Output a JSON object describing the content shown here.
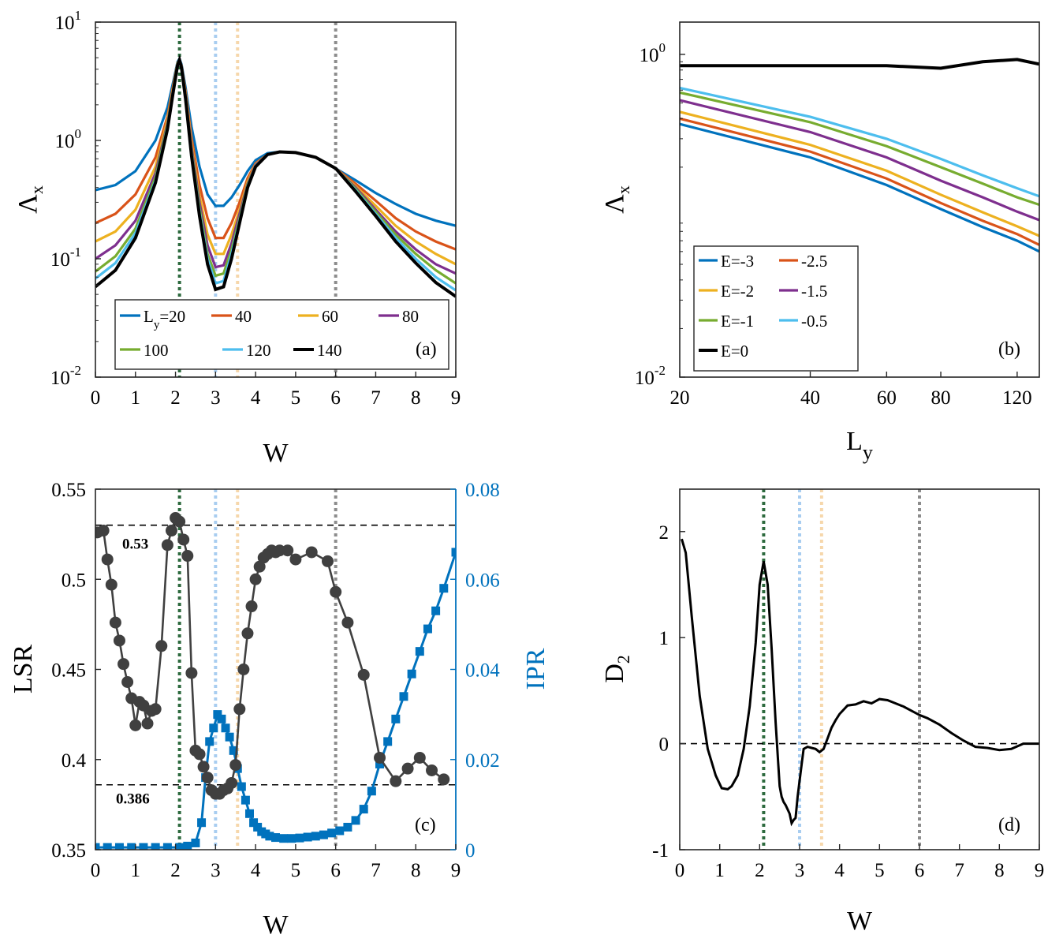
{
  "chart_data": [
    {
      "panel": "a",
      "type": "line",
      "xlabel": "W",
      "ylabel": "Λ",
      "ylabel_sub": "x",
      "yscale": "log",
      "xlim": [
        0,
        9
      ],
      "ylim_exp": [
        -2,
        1
      ],
      "xticks": [
        "0",
        "1",
        "2",
        "3",
        "4",
        "5",
        "6",
        "7",
        "8",
        "9"
      ],
      "yticks": [
        {
          "base": "10",
          "exp": "-2"
        },
        {
          "base": "10",
          "exp": "-1"
        },
        {
          "base": "10",
          "exp": "0"
        },
        {
          "base": "10",
          "exp": "1"
        }
      ],
      "panel_label": "(a)",
      "vlines": [
        {
          "x": 2.1,
          "color": "#2d6a3e"
        },
        {
          "x": 3.0,
          "color": "#a8cdf0"
        },
        {
          "x": 3.55,
          "color": "#f6d7ab"
        },
        {
          "x": 6.0,
          "color": "#8c8c8c"
        }
      ],
      "x": [
        0,
        0.5,
        1.0,
        1.5,
        1.8,
        1.95,
        2.05,
        2.1,
        2.15,
        2.25,
        2.4,
        2.6,
        2.8,
        3.0,
        3.2,
        3.4,
        3.6,
        3.8,
        4.0,
        4.3,
        4.6,
        5.0,
        5.5,
        6.0,
        6.5,
        7.0,
        7.5,
        8.0,
        8.5,
        9.0
      ],
      "series": [
        {
          "name": "L_y=20",
          "legend_label": "L",
          "legend_sub": "y",
          "legend_tail": "=20",
          "color": "#0072bd",
          "values": [
            0.38,
            0.42,
            0.55,
            1.0,
            1.9,
            3.2,
            4.6,
            4.9,
            4.4,
            2.8,
            1.3,
            0.6,
            0.35,
            0.28,
            0.28,
            0.33,
            0.42,
            0.55,
            0.68,
            0.78,
            0.8,
            0.79,
            0.72,
            0.58,
            0.46,
            0.36,
            0.29,
            0.24,
            0.21,
            0.19
          ]
        },
        {
          "name": "40",
          "legend_label": "40",
          "color": "#d95319",
          "values": [
            0.2,
            0.24,
            0.35,
            0.72,
            1.6,
            3.0,
            4.5,
            4.8,
            4.3,
            2.6,
            1.05,
            0.42,
            0.22,
            0.15,
            0.15,
            0.2,
            0.3,
            0.48,
            0.64,
            0.76,
            0.8,
            0.79,
            0.72,
            0.58,
            0.43,
            0.31,
            0.22,
            0.17,
            0.14,
            0.12
          ]
        },
        {
          "name": "60",
          "legend_label": "60",
          "color": "#edb120",
          "values": [
            0.14,
            0.17,
            0.26,
            0.6,
            1.5,
            2.9,
            4.5,
            4.8,
            4.2,
            2.5,
            0.95,
            0.34,
            0.16,
            0.11,
            0.11,
            0.16,
            0.26,
            0.45,
            0.63,
            0.76,
            0.8,
            0.79,
            0.72,
            0.58,
            0.41,
            0.28,
            0.19,
            0.14,
            0.11,
            0.09
          ]
        },
        {
          "name": "80",
          "legend_label": "80",
          "color": "#7e2f8e",
          "values": [
            0.1,
            0.13,
            0.21,
            0.53,
            1.4,
            2.8,
            4.4,
            4.8,
            4.2,
            2.4,
            0.88,
            0.3,
            0.13,
            0.085,
            0.088,
            0.135,
            0.24,
            0.43,
            0.62,
            0.76,
            0.8,
            0.79,
            0.72,
            0.58,
            0.4,
            0.26,
            0.17,
            0.12,
            0.09,
            0.075
          ]
        },
        {
          "name": "100",
          "legend_label": "100",
          "color": "#77ac30",
          "values": [
            0.078,
            0.105,
            0.18,
            0.49,
            1.35,
            2.75,
            4.4,
            4.8,
            4.2,
            2.35,
            0.82,
            0.27,
            0.11,
            0.072,
            0.075,
            0.12,
            0.22,
            0.42,
            0.61,
            0.76,
            0.8,
            0.79,
            0.72,
            0.58,
            0.39,
            0.25,
            0.16,
            0.11,
            0.08,
            0.062
          ]
        },
        {
          "name": "120",
          "legend_label": "120",
          "color": "#4dbeee",
          "values": [
            0.068,
            0.092,
            0.165,
            0.46,
            1.3,
            2.7,
            4.4,
            4.8,
            4.1,
            2.3,
            0.78,
            0.25,
            0.1,
            0.062,
            0.065,
            0.11,
            0.21,
            0.41,
            0.61,
            0.76,
            0.8,
            0.79,
            0.72,
            0.58,
            0.38,
            0.24,
            0.15,
            0.1,
            0.07,
            0.054
          ]
        },
        {
          "name": "140",
          "legend_label": "140",
          "color": "#000000",
          "values": [
            0.058,
            0.08,
            0.15,
            0.44,
            1.25,
            2.65,
            4.3,
            4.8,
            4.1,
            2.25,
            0.74,
            0.23,
            0.09,
            0.055,
            0.058,
            0.1,
            0.2,
            0.4,
            0.6,
            0.76,
            0.8,
            0.79,
            0.72,
            0.58,
            0.37,
            0.23,
            0.14,
            0.092,
            0.063,
            0.048
          ]
        }
      ]
    },
    {
      "panel": "b",
      "type": "line",
      "xlabel": "L",
      "xlabel_sub": "y",
      "ylabel": "Λ",
      "ylabel_sub": "x",
      "xscale": "log",
      "yscale": "log",
      "xlim": [
        20,
        135
      ],
      "ylim_exp": [
        -2,
        0.2
      ],
      "xticks": [
        "20",
        "40",
        "60",
        "80",
        "120"
      ],
      "xtick_values": [
        20,
        40,
        60,
        80,
        120
      ],
      "yticks": [
        {
          "base": "10",
          "exp": "-2"
        },
        {
          "base": "10",
          "exp": "0"
        }
      ],
      "panel_label": "(b)",
      "x": [
        20,
        40,
        60,
        80,
        100,
        120,
        135
      ],
      "series": [
        {
          "name": "E=-3",
          "legend_label": "E=-3",
          "color": "#0072bd",
          "values": [
            0.37,
            0.23,
            0.155,
            0.11,
            0.085,
            0.07,
            0.06
          ]
        },
        {
          "name": "-2.5",
          "legend_label": "-2.5",
          "color": "#d95319",
          "values": [
            0.4,
            0.25,
            0.17,
            0.12,
            0.093,
            0.077,
            0.066
          ]
        },
        {
          "name": "E=-2",
          "legend_label": "E=-2",
          "color": "#edb120",
          "values": [
            0.44,
            0.275,
            0.19,
            0.135,
            0.105,
            0.086,
            0.075
          ]
        },
        {
          "name": "-1.5",
          "legend_label": "-1.5",
          "color": "#7e2f8e",
          "values": [
            0.52,
            0.33,
            0.23,
            0.165,
            0.13,
            0.106,
            0.094
          ]
        },
        {
          "name": "E=-1",
          "legend_label": "E=-1",
          "color": "#77ac30",
          "values": [
            0.58,
            0.38,
            0.27,
            0.2,
            0.158,
            0.13,
            0.117
          ]
        },
        {
          "name": "-0.5",
          "legend_label": "-0.5",
          "color": "#4dbeee",
          "values": [
            0.62,
            0.41,
            0.3,
            0.225,
            0.178,
            0.148,
            0.132
          ]
        },
        {
          "name": "E=0",
          "legend_label": "E=0",
          "color": "#000000",
          "values": [
            0.85,
            0.85,
            0.85,
            0.82,
            0.9,
            0.93,
            0.87
          ]
        }
      ]
    },
    {
      "panel": "c",
      "type": "scatter",
      "xlabel": "W",
      "ylabel": "LSR",
      "ylabel_right": "IPR",
      "xlim": [
        0,
        9
      ],
      "ylim": [
        0.35,
        0.55
      ],
      "ylim_right": [
        0,
        0.08
      ],
      "xticks": [
        "0",
        "1",
        "2",
        "3",
        "4",
        "5",
        "6",
        "7",
        "8",
        "9"
      ],
      "yticks": [
        "0.35",
        "0.4",
        "0.45",
        "0.5",
        "0.55"
      ],
      "yticks_right": [
        "0",
        "0.02",
        "0.04",
        "0.06",
        "0.08"
      ],
      "panel_label": "(c)",
      "hlines": [
        {
          "y": 0.53,
          "label": "0.53"
        },
        {
          "y": 0.386,
          "label": "0.386"
        }
      ],
      "vlines": [
        {
          "x": 2.1,
          "color": "#2d6a3e"
        },
        {
          "x": 3.0,
          "color": "#a8cdf0"
        },
        {
          "x": 3.55,
          "color": "#f6d7ab"
        },
        {
          "x": 6.0,
          "color": "#8c8c8c"
        }
      ],
      "series": [
        {
          "name": "LSR",
          "color": "#404040",
          "marker": "circle",
          "axis": "left",
          "x": [
            0.05,
            0.2,
            0.3,
            0.4,
            0.5,
            0.6,
            0.7,
            0.8,
            0.9,
            1.0,
            1.1,
            1.2,
            1.3,
            1.4,
            1.5,
            1.65,
            1.8,
            1.9,
            2.0,
            2.1,
            2.2,
            2.3,
            2.4,
            2.5,
            2.6,
            2.7,
            2.8,
            2.9,
            3.0,
            3.1,
            3.2,
            3.3,
            3.4,
            3.5,
            3.6,
            3.7,
            3.8,
            3.9,
            4.0,
            4.1,
            4.2,
            4.3,
            4.4,
            4.5,
            4.6,
            4.8,
            5.0,
            5.4,
            5.8,
            6.0,
            6.3,
            6.7,
            7.1,
            7.5,
            7.8,
            8.1,
            8.4,
            8.7
          ],
          "values": [
            0.526,
            0.527,
            0.511,
            0.497,
            0.476,
            0.466,
            0.453,
            0.443,
            0.434,
            0.419,
            0.432,
            0.43,
            0.42,
            0.427,
            0.428,
            0.463,
            0.519,
            0.527,
            0.534,
            0.532,
            0.522,
            0.513,
            0.448,
            0.405,
            0.403,
            0.396,
            0.39,
            0.383,
            0.381,
            0.381,
            0.383,
            0.384,
            0.387,
            0.397,
            0.428,
            0.45,
            0.47,
            0.485,
            0.5,
            0.507,
            0.512,
            0.514,
            0.516,
            0.515,
            0.516,
            0.516,
            0.511,
            0.515,
            0.51,
            0.493,
            0.476,
            0.447,
            0.401,
            0.388,
            0.395,
            0.401,
            0.394,
            0.389
          ]
        },
        {
          "name": "IPR",
          "color": "#0072bd",
          "marker": "square",
          "axis": "right",
          "x": [
            0,
            0.3,
            0.6,
            0.9,
            1.2,
            1.5,
            1.8,
            2.1,
            2.3,
            2.5,
            2.65,
            2.75,
            2.85,
            2.95,
            3.05,
            3.15,
            3.25,
            3.35,
            3.45,
            3.55,
            3.65,
            3.75,
            3.85,
            3.95,
            4.05,
            4.15,
            4.25,
            4.35,
            4.5,
            4.7,
            4.9,
            5.1,
            5.3,
            5.5,
            5.7,
            5.9,
            6.1,
            6.3,
            6.5,
            6.7,
            6.9,
            7.1,
            7.3,
            7.5,
            7.7,
            7.9,
            8.1,
            8.3,
            8.5,
            8.7,
            9.0
          ],
          "values": [
            0.0005,
            0.0005,
            0.0005,
            0.0005,
            0.0005,
            0.0005,
            0.0005,
            0.0005,
            0.0008,
            0.0015,
            0.006,
            0.016,
            0.024,
            0.027,
            0.03,
            0.029,
            0.027,
            0.025,
            0.022,
            0.018,
            0.014,
            0.011,
            0.008,
            0.006,
            0.005,
            0.004,
            0.0035,
            0.003,
            0.0027,
            0.0025,
            0.0025,
            0.0026,
            0.0028,
            0.003,
            0.0033,
            0.0037,
            0.0042,
            0.005,
            0.0065,
            0.009,
            0.013,
            0.019,
            0.024,
            0.029,
            0.034,
            0.039,
            0.044,
            0.049,
            0.053,
            0.058,
            0.066
          ]
        }
      ]
    },
    {
      "panel": "d",
      "type": "line",
      "xlabel": "W",
      "ylabel": "D",
      "ylabel_sub": "2",
      "xlim": [
        0,
        9
      ],
      "ylim": [
        -1,
        2.4
      ],
      "xticks": [
        "0",
        "1",
        "2",
        "3",
        "4",
        "5",
        "6",
        "7",
        "8",
        "9"
      ],
      "yticks": [
        "-1",
        "0",
        "1",
        "2"
      ],
      "panel_label": "(d)",
      "hline": 0,
      "vlines": [
        {
          "x": 2.1,
          "color": "#2d6a3e"
        },
        {
          "x": 3.0,
          "color": "#a8cdf0"
        },
        {
          "x": 3.55,
          "color": "#f6d7ab"
        },
        {
          "x": 6.0,
          "color": "#8c8c8c"
        }
      ],
      "series": [
        {
          "name": "D2",
          "color": "#000000",
          "x": [
            0.05,
            0.15,
            0.3,
            0.5,
            0.7,
            0.9,
            1.05,
            1.2,
            1.3,
            1.45,
            1.6,
            1.75,
            1.9,
            2.0,
            2.1,
            2.2,
            2.3,
            2.4,
            2.5,
            2.55,
            2.6,
            2.65,
            2.7,
            2.75,
            2.8,
            2.85,
            2.9,
            2.95,
            3.0,
            3.05,
            3.1,
            3.2,
            3.3,
            3.4,
            3.5,
            3.6,
            3.7,
            3.8,
            3.9,
            4.0,
            4.2,
            4.4,
            4.6,
            4.8,
            5.0,
            5.2,
            5.4,
            5.6,
            5.8,
            6.0,
            6.2,
            6.5,
            6.8,
            7.1,
            7.4,
            7.7,
            8.0,
            8.3,
            8.6,
            9.0
          ],
          "values": [
            1.93,
            1.8,
            1.2,
            0.45,
            -0.05,
            -0.3,
            -0.42,
            -0.43,
            -0.4,
            -0.3,
            -0.05,
            0.35,
            0.95,
            1.5,
            1.72,
            1.5,
            0.9,
            0.2,
            -0.4,
            -0.5,
            -0.55,
            -0.58,
            -0.62,
            -0.66,
            -0.75,
            -0.72,
            -0.7,
            -0.5,
            -0.35,
            -0.2,
            -0.05,
            -0.03,
            -0.04,
            -0.05,
            -0.08,
            -0.05,
            0.05,
            0.15,
            0.22,
            0.28,
            0.36,
            0.37,
            0.4,
            0.38,
            0.42,
            0.41,
            0.38,
            0.35,
            0.31,
            0.27,
            0.24,
            0.18,
            0.1,
            0.03,
            -0.03,
            -0.04,
            -0.06,
            -0.05,
            0.0,
            0.0
          ]
        }
      ]
    }
  ]
}
